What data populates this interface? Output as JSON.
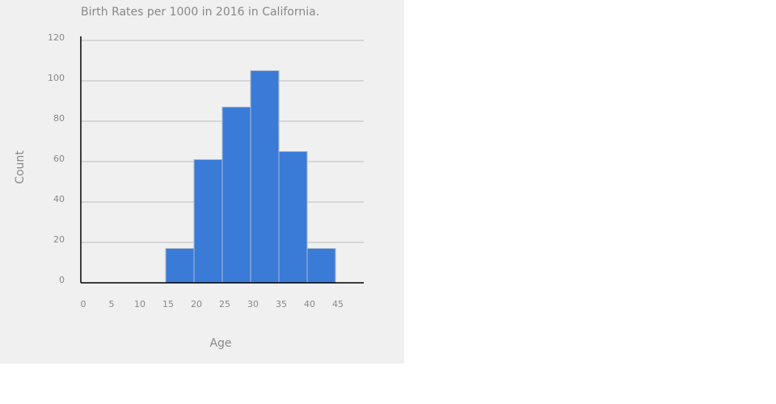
{
  "chart_data": {
    "type": "histogram",
    "title": "Birth Rates per 1000 in 2016 in California.",
    "x_label": "Age",
    "y_label": "Count",
    "bins": [
      15,
      20,
      25,
      30,
      35,
      40,
      45
    ],
    "counts": [
      17,
      61,
      87,
      105,
      65,
      17
    ],
    "color": "#3a7bd8",
    "xlim": [
      0,
      50
    ],
    "xticks": [
      0,
      5,
      10,
      15,
      20,
      25,
      30,
      35,
      40,
      45
    ],
    "ylim": [
      0,
      120
    ],
    "yticks": [
      0,
      20,
      40,
      60,
      80,
      100,
      120
    ],
    "grid": true
  }
}
